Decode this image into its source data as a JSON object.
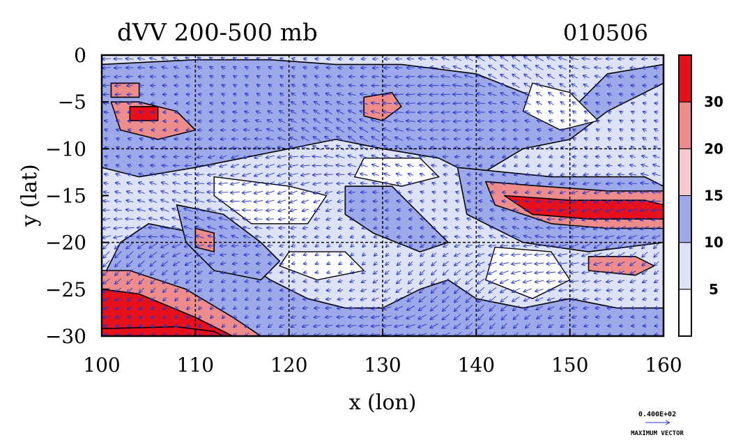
{
  "chart_data": {
    "type": "heatmap",
    "title": "dVV 200-500 mb",
    "date_label": "010506",
    "xlabel": "x (lon)",
    "ylabel": "y (lat)",
    "xlim": [
      100,
      160
    ],
    "ylim": [
      -30,
      0
    ],
    "x_ticks": [
      100,
      110,
      120,
      130,
      140,
      150,
      160
    ],
    "x_tick_labels": [
      "100",
      "110",
      "120",
      "130",
      "140",
      "150",
      "160"
    ],
    "y_ticks": [
      0,
      -5,
      -10,
      -15,
      -20,
      -25,
      -30
    ],
    "y_tick_labels": [
      "0",
      "−5",
      "−10",
      "−15",
      "−20",
      "−25",
      "−30"
    ],
    "grid_x": [
      110,
      120,
      130,
      140,
      150
    ],
    "grid_y": [
      -10,
      -20
    ],
    "colorbar": {
      "levels": [
        0,
        5,
        10,
        15,
        20,
        30,
        40
      ],
      "tick_labels": [
        "5",
        "10",
        "15",
        "20",
        "30"
      ],
      "tick_values": [
        5,
        10,
        15,
        20,
        30
      ],
      "colors": [
        "#ffffff",
        "#dde2f6",
        "#9ea9ea",
        "#f4c8cc",
        "#ee8c8c",
        "#e8101a"
      ]
    },
    "regions": [
      {
        "level": 10,
        "points": [
          [
            100,
            -30
          ],
          [
            100,
            -24
          ],
          [
            102,
            -20
          ],
          [
            105,
            -18
          ],
          [
            110,
            -19
          ],
          [
            115,
            -22
          ],
          [
            118,
            -24
          ],
          [
            122,
            -26
          ],
          [
            126,
            -27
          ],
          [
            130,
            -27
          ],
          [
            134,
            -25
          ],
          [
            137,
            -24
          ],
          [
            140,
            -26
          ],
          [
            145,
            -27
          ],
          [
            150,
            -26
          ],
          [
            155,
            -27
          ],
          [
            160,
            -27
          ],
          [
            160,
            -30
          ]
        ]
      },
      {
        "level": 10,
        "points": [
          [
            100,
            -1
          ],
          [
            100,
            -12
          ],
          [
            104,
            -13
          ],
          [
            110,
            -12
          ],
          [
            115,
            -11
          ],
          [
            120,
            -10
          ],
          [
            125,
            -9
          ],
          [
            130,
            -10
          ],
          [
            136,
            -11
          ],
          [
            140,
            -13
          ],
          [
            145,
            -10
          ],
          [
            150,
            -9
          ],
          [
            154,
            -6
          ],
          [
            158,
            -4
          ],
          [
            160,
            -3
          ],
          [
            160,
            -1
          ],
          [
            154,
            -2
          ],
          [
            150,
            -6
          ],
          [
            145,
            -4
          ],
          [
            140,
            -2
          ],
          [
            132,
            -1
          ],
          [
            125,
            -1
          ],
          [
            118,
            -0.5
          ],
          [
            110,
            -0.5
          ]
        ]
      },
      {
        "level": 10,
        "points": [
          [
            108,
            -16
          ],
          [
            113,
            -17
          ],
          [
            117,
            -20
          ],
          [
            119,
            -22
          ],
          [
            117,
            -24
          ],
          [
            112,
            -23
          ],
          [
            109,
            -20
          ]
        ]
      },
      {
        "level": 10,
        "points": [
          [
            138,
            -12
          ],
          [
            148,
            -13
          ],
          [
            158,
            -13
          ],
          [
            160,
            -14
          ],
          [
            160,
            -20
          ],
          [
            152,
            -21
          ],
          [
            145,
            -20
          ],
          [
            139,
            -17
          ]
        ]
      },
      {
        "level": 10,
        "points": [
          [
            126,
            -14
          ],
          [
            131,
            -14
          ],
          [
            134,
            -17
          ],
          [
            137,
            -20
          ],
          [
            134,
            -21
          ],
          [
            129,
            -19
          ],
          [
            126,
            -17
          ]
        ]
      },
      {
        "level": 20,
        "points": [
          [
            100,
            -30
          ],
          [
            100,
            -23
          ],
          [
            103,
            -23
          ],
          [
            109,
            -25
          ],
          [
            114,
            -28
          ],
          [
            117,
            -30
          ]
        ]
      },
      {
        "level": 20,
        "points": [
          [
            101,
            -5
          ],
          [
            104,
            -5
          ],
          [
            108,
            -6
          ],
          [
            110,
            -8
          ],
          [
            106,
            -9
          ],
          [
            102,
            -8
          ]
        ]
      },
      {
        "level": 20,
        "points": [
          [
            141,
            -13.5
          ],
          [
            147,
            -14
          ],
          [
            154,
            -14.5
          ],
          [
            160,
            -14.5
          ],
          [
            160,
            -18.5
          ],
          [
            154,
            -18.5
          ],
          [
            148,
            -18
          ],
          [
            142,
            -16
          ]
        ]
      },
      {
        "level": 20,
        "points": [
          [
            152,
            -21.5
          ],
          [
            157,
            -21.5
          ],
          [
            159,
            -22.5
          ],
          [
            157,
            -23.5
          ],
          [
            152,
            -23
          ]
        ]
      },
      {
        "level": 20,
        "points": [
          [
            128,
            -4.5
          ],
          [
            131,
            -4
          ],
          [
            132,
            -5.5
          ],
          [
            130,
            -7
          ],
          [
            128,
            -6.5
          ]
        ]
      },
      {
        "level": 20,
        "points": [
          [
            110,
            -18.5
          ],
          [
            112,
            -19
          ],
          [
            112,
            -21
          ],
          [
            110,
            -20.5
          ]
        ]
      },
      {
        "level": 20,
        "points": [
          [
            101,
            -3
          ],
          [
            104,
            -3
          ],
          [
            104,
            -4.5
          ],
          [
            101,
            -4.5
          ]
        ]
      },
      {
        "level": 30,
        "points": [
          [
            100,
            -30
          ],
          [
            100,
            -25
          ],
          [
            104,
            -25.5
          ],
          [
            110,
            -28
          ],
          [
            114,
            -30
          ]
        ]
      },
      {
        "level": 30,
        "points": [
          [
            143,
            -15
          ],
          [
            150,
            -15.5
          ],
          [
            158,
            -15.5
          ],
          [
            160,
            -16
          ],
          [
            160,
            -17.5
          ],
          [
            152,
            -17.5
          ],
          [
            146,
            -17
          ]
        ]
      },
      {
        "level": 30,
        "points": [
          [
            103,
            -5.5
          ],
          [
            106,
            -5.5
          ],
          [
            106,
            -7
          ],
          [
            103,
            -7
          ]
        ]
      },
      {
        "level": 40,
        "points": [
          [
            100,
            -30
          ],
          [
            100,
            -29.2
          ],
          [
            108,
            -29
          ],
          [
            112,
            -29.5
          ],
          [
            113,
            -30
          ]
        ]
      }
    ],
    "max_vector_label": "0.400E+02",
    "max_vector_caption": "MAXIMUM VECTOR"
  }
}
